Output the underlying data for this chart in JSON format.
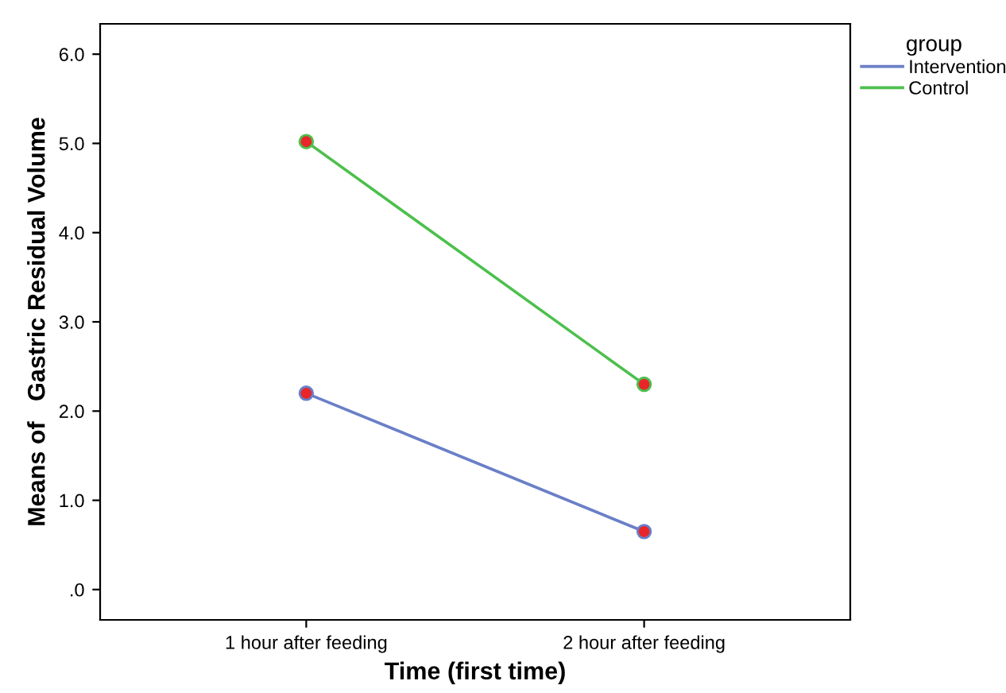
{
  "chart_data": {
    "type": "line",
    "xlabel": "Time (first time)",
    "ylabel": "Means of   Gastric Residual Volume",
    "legend_title": "group",
    "categories": [
      "1 hour after feeding",
      "2 hour after feeding"
    ],
    "series": [
      {
        "name": "Intervention",
        "color": "#6a7fc8",
        "values": [
          2.2,
          0.65
        ]
      },
      {
        "name": "Control",
        "color": "#4cc04c",
        "values": [
          5.02,
          2.3
        ]
      }
    ],
    "ylim": [
      -0.34,
      6.34
    ],
    "yticks": [
      {
        "value": 0,
        "label": ".0"
      },
      {
        "value": 1,
        "label": "1.0"
      },
      {
        "value": 2,
        "label": "2.0"
      },
      {
        "value": 3,
        "label": "3.0"
      },
      {
        "value": 4,
        "label": "4.0"
      },
      {
        "value": 5,
        "label": "5.0"
      },
      {
        "value": 6,
        "label": "6.0"
      }
    ],
    "marker": "circle",
    "line_style": "solid",
    "legend": "top right",
    "grid": false
  }
}
